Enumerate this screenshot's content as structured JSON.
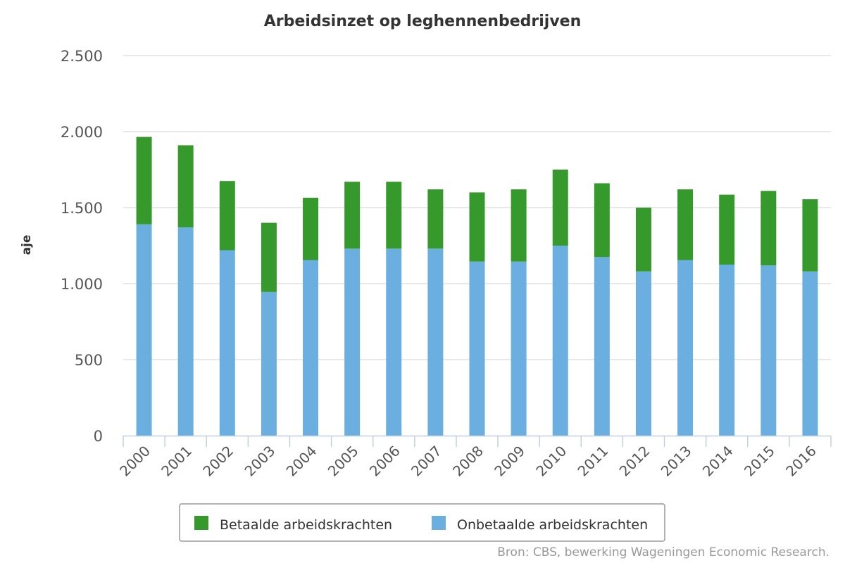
{
  "chart_data": {
    "type": "bar",
    "stacked": true,
    "title": "Arbeidsinzet op leghennenbedrijven",
    "ylabel": "aje",
    "xlabel": "",
    "ylim": [
      0,
      2500
    ],
    "yticks": [
      0,
      500,
      1000,
      1500,
      2000,
      2500
    ],
    "ytick_labels": [
      "0",
      "500",
      "1.000",
      "1.500",
      "2.000",
      "2.500"
    ],
    "grid": true,
    "legend_position": "bottom",
    "categories": [
      "2000",
      "2001",
      "2002",
      "2003",
      "2004",
      "2005",
      "2006",
      "2007",
      "2008",
      "2009",
      "2010",
      "2011",
      "2012",
      "2013",
      "2014",
      "2015",
      "2016"
    ],
    "series": [
      {
        "name": "Onbetaalde arbeidskrachten",
        "color": "#6aafe0",
        "values": [
          1390,
          1370,
          1220,
          945,
          1155,
          1230,
          1230,
          1230,
          1145,
          1145,
          1250,
          1175,
          1080,
          1155,
          1125,
          1120,
          1080
        ]
      },
      {
        "name": "Betaalde arbeidskrachten",
        "color": "#36992c",
        "values": [
          575,
          540,
          455,
          455,
          410,
          440,
          440,
          390,
          455,
          475,
          500,
          485,
          420,
          465,
          460,
          490,
          475
        ]
      }
    ],
    "legend_order": [
      "Betaalde arbeidskrachten",
      "Onbetaalde arbeidskrachten"
    ],
    "source": "Bron: CBS, bewerking Wageningen Economic Research."
  }
}
